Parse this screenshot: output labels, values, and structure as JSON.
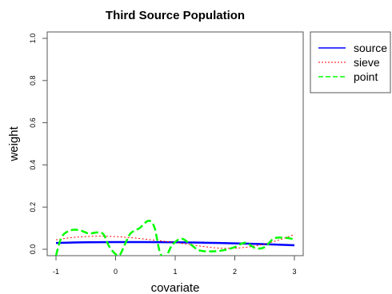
{
  "chart_data": {
    "type": "line",
    "title": "Third Source Population",
    "xlabel": "covariate",
    "ylabel": "weight",
    "xlim": [
      -1,
      3
    ],
    "ylim": [
      0,
      1
    ],
    "x_ticks": [
      "-1",
      "0",
      "1",
      "2",
      "3"
    ],
    "y_ticks": [
      "0.0",
      "0.2",
      "0.4",
      "0.6",
      "0.8",
      "1.0"
    ],
    "legend_position": "top-right, outside plot",
    "grid": false,
    "series": [
      {
        "name": "source",
        "color": "#0000ff",
        "style": "solid",
        "x": [
          -1,
          -0.5,
          0,
          0.5,
          1,
          1.5,
          2,
          2.5,
          3
        ],
        "y": [
          0.03,
          0.033,
          0.034,
          0.034,
          0.033,
          0.031,
          0.028,
          0.024,
          0.019
        ]
      },
      {
        "name": "sieve",
        "color": "#ff0000",
        "style": "dotted",
        "x": [
          -1,
          -0.75,
          -0.5,
          -0.25,
          0,
          0.25,
          0.5,
          0.75,
          1,
          1.25,
          1.5,
          1.75,
          2,
          2.25,
          2.5,
          2.75,
          3
        ],
        "y": [
          0.045,
          0.055,
          0.06,
          0.062,
          0.06,
          0.055,
          0.048,
          0.04,
          0.032,
          0.022,
          0.012,
          0.005,
          0.005,
          0.012,
          0.025,
          0.045,
          0.07
        ]
      },
      {
        "name": "point",
        "color": "#00ff00",
        "style": "dashed",
        "x": [
          -1,
          -0.9,
          -0.75,
          -0.6,
          -0.45,
          -0.3,
          -0.2,
          -0.1,
          0.05,
          0.15,
          0.25,
          0.4,
          0.55,
          0.65,
          0.75,
          0.85,
          0.95,
          1.1,
          1.25,
          1.4,
          1.6,
          1.8,
          2.0,
          2.1,
          2.2,
          2.35,
          2.5,
          2.65,
          2.8,
          2.95,
          3.0
        ],
        "y": [
          -0.03,
          0.06,
          0.09,
          0.09,
          0.075,
          0.08,
          0.07,
          0.01,
          -0.03,
          0.02,
          0.075,
          0.1,
          0.135,
          0.105,
          -0.02,
          -0.03,
          0.02,
          0.05,
          0.025,
          -0.005,
          -0.01,
          -0.005,
          0.01,
          0.025,
          0.03,
          0.005,
          0.01,
          0.05,
          0.055,
          0.05,
          0.04
        ]
      }
    ]
  }
}
